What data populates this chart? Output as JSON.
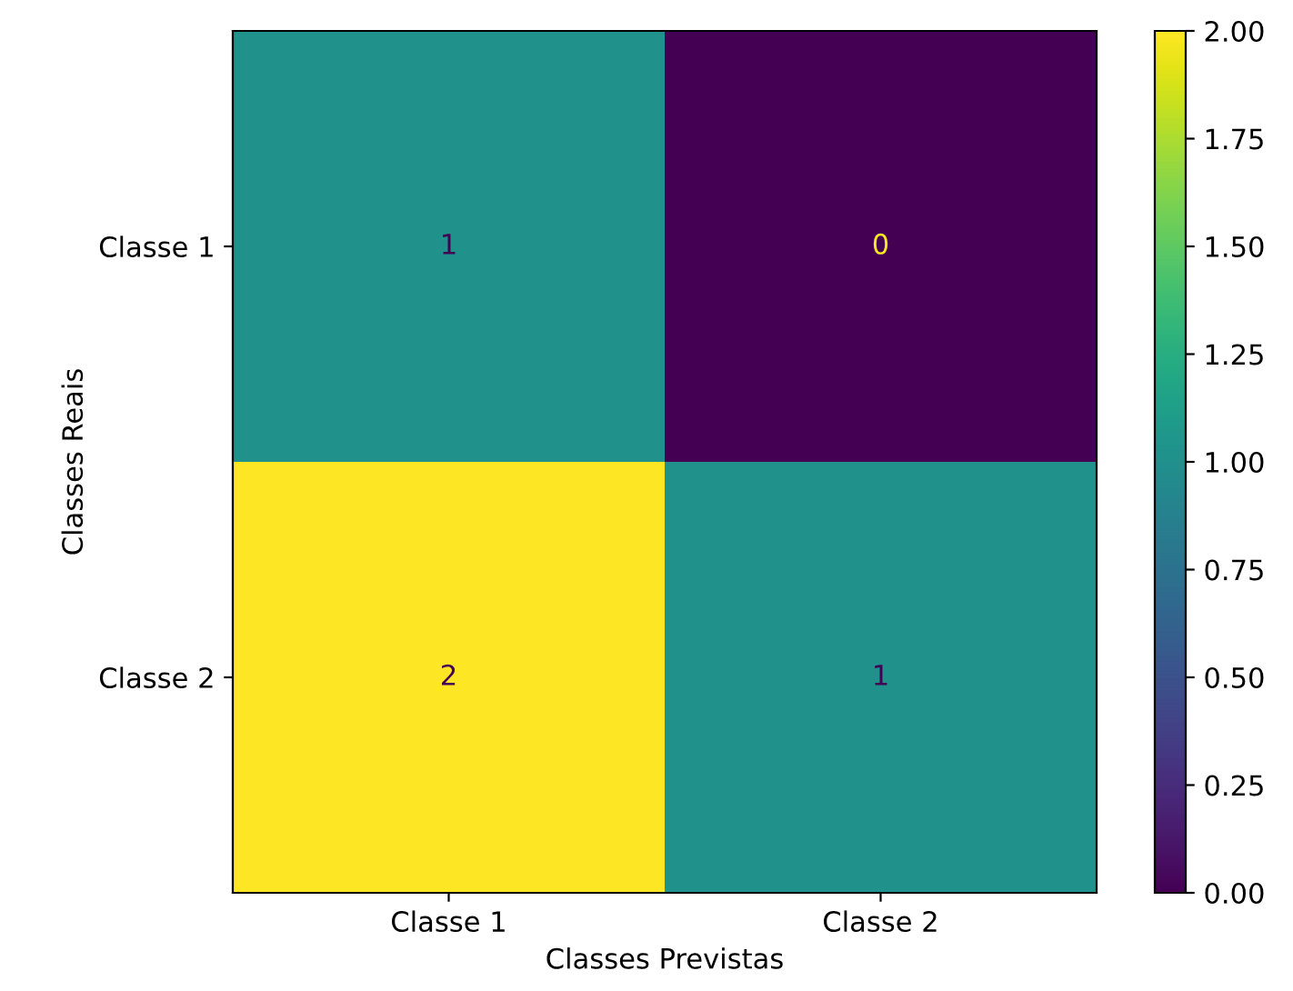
{
  "chart_data": {
    "type": "heatmap",
    "xlabel": "Classes Previstas",
    "ylabel": "Classes Reais",
    "categories": [
      "Classe 1",
      "Classe 2"
    ],
    "y_categories": [
      "Classe 1",
      "Classe 2"
    ],
    "cells": [
      [
        1,
        0
      ],
      [
        2,
        1
      ]
    ],
    "data_labels": true,
    "clim": [
      0,
      2
    ],
    "cticks": [
      {
        "value": 0,
        "label": "0.00"
      },
      {
        "value": 0.25,
        "label": "0.25"
      },
      {
        "value": 0.5,
        "label": "0.50"
      },
      {
        "value": 0.75,
        "label": "0.75"
      },
      {
        "value": 1,
        "label": "1.00"
      },
      {
        "value": 1.25,
        "label": "1.25"
      },
      {
        "value": 1.5,
        "label": "1.50"
      },
      {
        "value": 1.75,
        "label": "1.75"
      },
      {
        "value": 2,
        "label": "2.00"
      }
    ]
  }
}
